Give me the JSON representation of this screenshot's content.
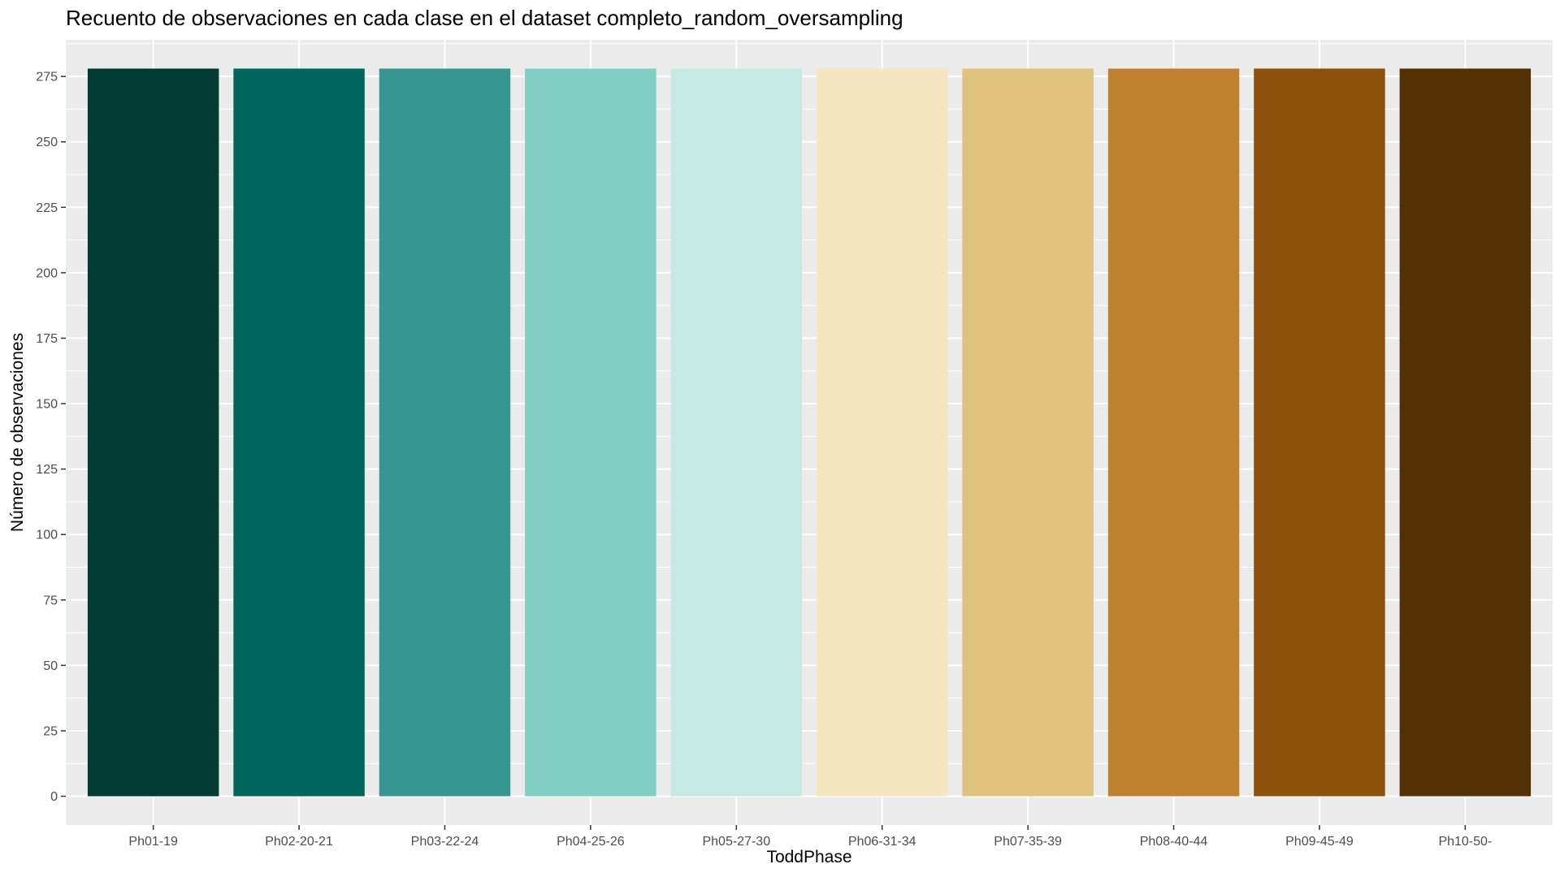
{
  "chart_data": {
    "type": "bar",
    "title": "Recuento de observaciones en cada clase en el dataset completo_random_oversampling",
    "xlabel": "ToddPhase",
    "ylabel": "Número de observaciones",
    "categories": [
      "Ph01-19",
      "Ph02-20-21",
      "Ph03-22-24",
      "Ph04-25-26",
      "Ph05-27-30",
      "Ph06-31-34",
      "Ph07-35-39",
      "Ph08-40-44",
      "Ph09-45-49",
      "Ph10-50-"
    ],
    "values": [
      278,
      278,
      278,
      278,
      278,
      278,
      278,
      278,
      278,
      278
    ],
    "colors": [
      "#013C32",
      "#03665E",
      "#37968F",
      "#81CFC2",
      "#C7E9E4",
      "#F5E6C2",
      "#DFC27D",
      "#BF812D",
      "#8C510A",
      "#543005"
    ],
    "ylim": [
      -11,
      289
    ],
    "yticks": [
      0,
      25,
      50,
      75,
      100,
      125,
      150,
      175,
      200,
      225,
      250,
      275
    ],
    "grid": true,
    "legend": "none",
    "panel_background": "#EBEBEB",
    "grid_color": "#FFFFFF"
  }
}
